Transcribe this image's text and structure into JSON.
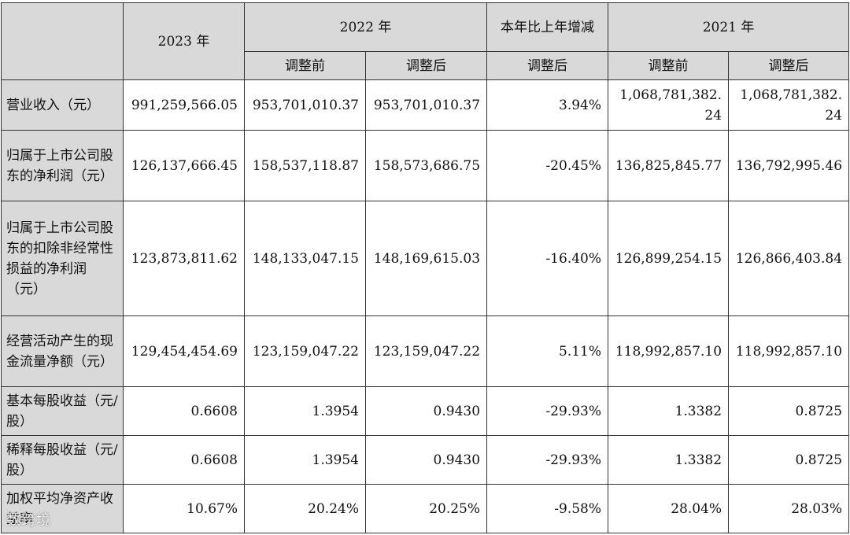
{
  "header": {
    "col_2023": "2023 年",
    "col_2022": "2022 年",
    "col_change": "本年比上年增减",
    "col_2021": "2021 年",
    "before": "调整前",
    "after": "调整后",
    "after_change": "调整后"
  },
  "rows": [
    {
      "label": "营业收入（元）",
      "v2023": "991,259,566.05",
      "v2022_before": "953,701,010.37",
      "v2022_after": "953,701,010.37",
      "change": "3.94%",
      "v2021_before": "1,068,781,382.24",
      "v2021_after": "1,068,781,382.24"
    },
    {
      "label": "归属于上市公司股东的净利润（元）",
      "v2023": "126,137,666.45",
      "v2022_before": "158,537,118.87",
      "v2022_after": "158,573,686.75",
      "change": "-20.45%",
      "v2021_before": "136,825,845.77",
      "v2021_after": "136,792,995.46"
    },
    {
      "label": "归属于上市公司股东的扣除非经常性损益的净利润（元）",
      "v2023": "123,873,811.62",
      "v2022_before": "148,133,047.15",
      "v2022_after": "148,169,615.03",
      "change": "-16.40%",
      "v2021_before": "126,899,254.15",
      "v2021_after": "126,866,403.84"
    },
    {
      "label": "经营活动产生的现金流量净额（元）",
      "v2023": "129,454,454.69",
      "v2022_before": "123,159,047.22",
      "v2022_after": "123,159,047.22",
      "change": "5.11%",
      "v2021_before": "118,992,857.10",
      "v2021_after": "118,992,857.10"
    },
    {
      "label": "基本每股收益（元/股）",
      "v2023": "0.6608",
      "v2022_before": "1.3954",
      "v2022_after": "0.9430",
      "change": "-29.93%",
      "v2021_before": "1.3382",
      "v2021_after": "0.8725"
    },
    {
      "label": "稀释每股收益（元/股）",
      "v2023": "0.6608",
      "v2022_before": "1.3954",
      "v2022_after": "0.9430",
      "change": "-29.93%",
      "v2021_before": "1.3382",
      "v2021_after": "0.8725"
    },
    {
      "label": "加权平均净资产收益率",
      "v2023": "10.67%",
      "v2022_before": "20.24%",
      "v2022_after": "20.25%",
      "change": "-9.58%",
      "v2021_before": "28.04%",
      "v2021_after": "28.03%"
    }
  ],
  "watermark": "数跨境"
}
